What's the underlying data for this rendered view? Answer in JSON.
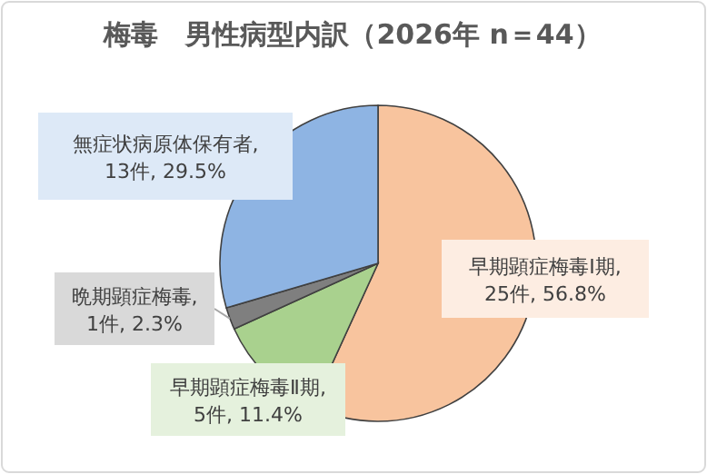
{
  "chart_data": {
    "type": "pie",
    "title": "梅毒　男性病型内訳（2026年 n＝44）",
    "categories": [
      "早期顕症梅毒Ⅰ期",
      "早期顕症梅毒Ⅱ期",
      "晩期顕症梅毒",
      "無症状病原体保有者"
    ],
    "values": [
      25,
      5,
      1,
      13
    ],
    "value_labels": [
      ", 25件, 56.8%",
      ", 5件, 11.4%",
      ", 1件, 2.3%",
      ", 13件, 29.5%"
    ],
    "colors": [
      "#f8c49e",
      "#a9d18e",
      "#7f7f7f",
      "#8eb4e3"
    ],
    "legend": false
  }
}
